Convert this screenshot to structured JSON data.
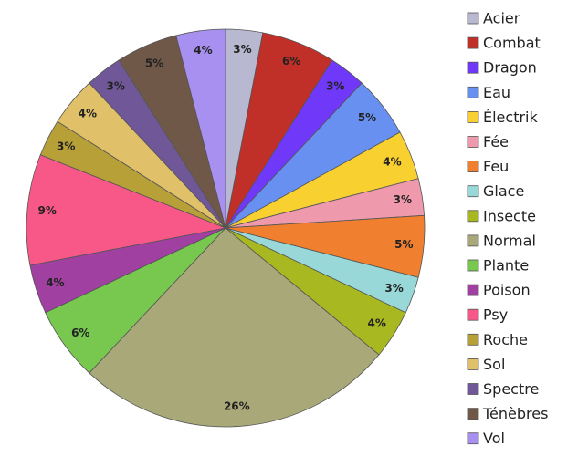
{
  "chart_data": {
    "type": "pie",
    "categories": [
      "Acier",
      "Combat",
      "Dragon",
      "Eau",
      "Électrik",
      "Fée",
      "Feu",
      "Glace",
      "Insecte",
      "Normal",
      "Plante",
      "Poison",
      "Psy",
      "Roche",
      "Sol",
      "Spectre",
      "Ténèbres",
      "Vol"
    ],
    "values": [
      3,
      6,
      3,
      5,
      4,
      3,
      5,
      3,
      4,
      26,
      6,
      4,
      9,
      3,
      4,
      3,
      5,
      4
    ],
    "value_labels": [
      "3%",
      "6%",
      "3%",
      "5%",
      "4%",
      "3%",
      "5%",
      "3%",
      "4%",
      "26%",
      "6%",
      "4%",
      "9%",
      "3%",
      "4%",
      "3%",
      "5%",
      "4%"
    ],
    "colors": [
      "#b8b8d0",
      "#c03028",
      "#7038f8",
      "#6890f0",
      "#f8d030",
      "#ee99ac",
      "#f08030",
      "#98d8d8",
      "#a8b820",
      "#a8a878",
      "#78c850",
      "#a040a0",
      "#f85888",
      "#b8a038",
      "#e0c068",
      "#705898",
      "#705848",
      "#a890f0"
    ],
    "legend": "right"
  }
}
